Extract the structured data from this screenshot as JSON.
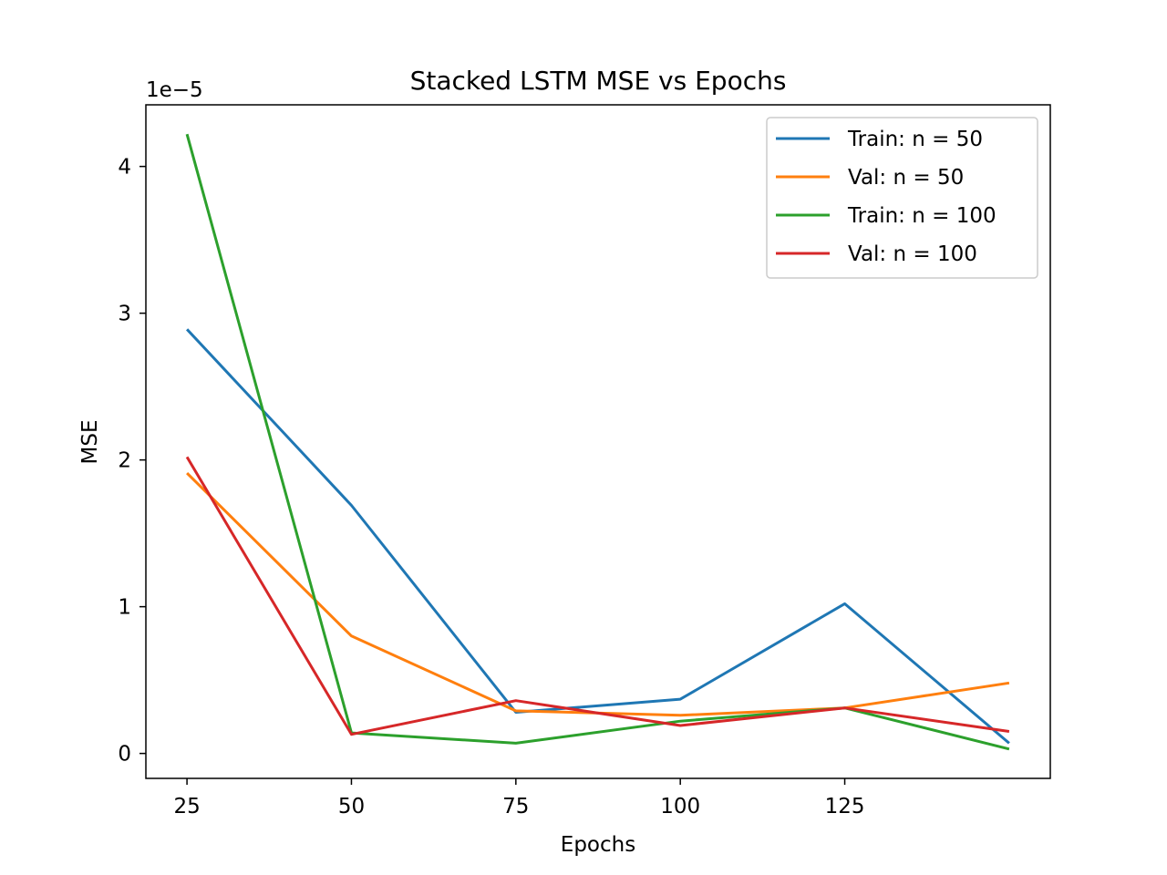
{
  "chart_data": {
    "type": "line",
    "title": "Stacked LSTM MSE vs Epochs",
    "xlabel": "Epochs",
    "ylabel": "MSE",
    "y_offset_text": "1e−5",
    "x": [
      25,
      50,
      75,
      100,
      125,
      150
    ],
    "xticks": [
      25,
      50,
      75,
      100,
      125
    ],
    "xtick_labels": [
      "25",
      "50",
      "75",
      "100",
      "125"
    ],
    "yticks": [
      0,
      1,
      2,
      3,
      4
    ],
    "ytick_labels": [
      "0",
      "1",
      "2",
      "3",
      "4"
    ],
    "xlim": [
      18.75,
      156.25
    ],
    "ylim": [
      -0.17,
      4.42
    ],
    "legend_position": "top-right",
    "grid": false,
    "series": [
      {
        "name": "Train: n = 50",
        "color": "#1f77b4",
        "values": [
          2.89,
          1.69,
          0.28,
          0.37,
          1.02,
          0.07
        ]
      },
      {
        "name": "Val: n = 50",
        "color": "#ff7f0e",
        "values": [
          1.91,
          0.8,
          0.29,
          0.26,
          0.31,
          0.48
        ]
      },
      {
        "name": "Train: n = 100",
        "color": "#2ca02c",
        "values": [
          4.22,
          0.14,
          0.07,
          0.22,
          0.31,
          0.03
        ]
      },
      {
        "name": "Val: n = 100",
        "color": "#d62728",
        "values": [
          2.02,
          0.13,
          0.36,
          0.19,
          0.31,
          0.15
        ]
      }
    ]
  }
}
